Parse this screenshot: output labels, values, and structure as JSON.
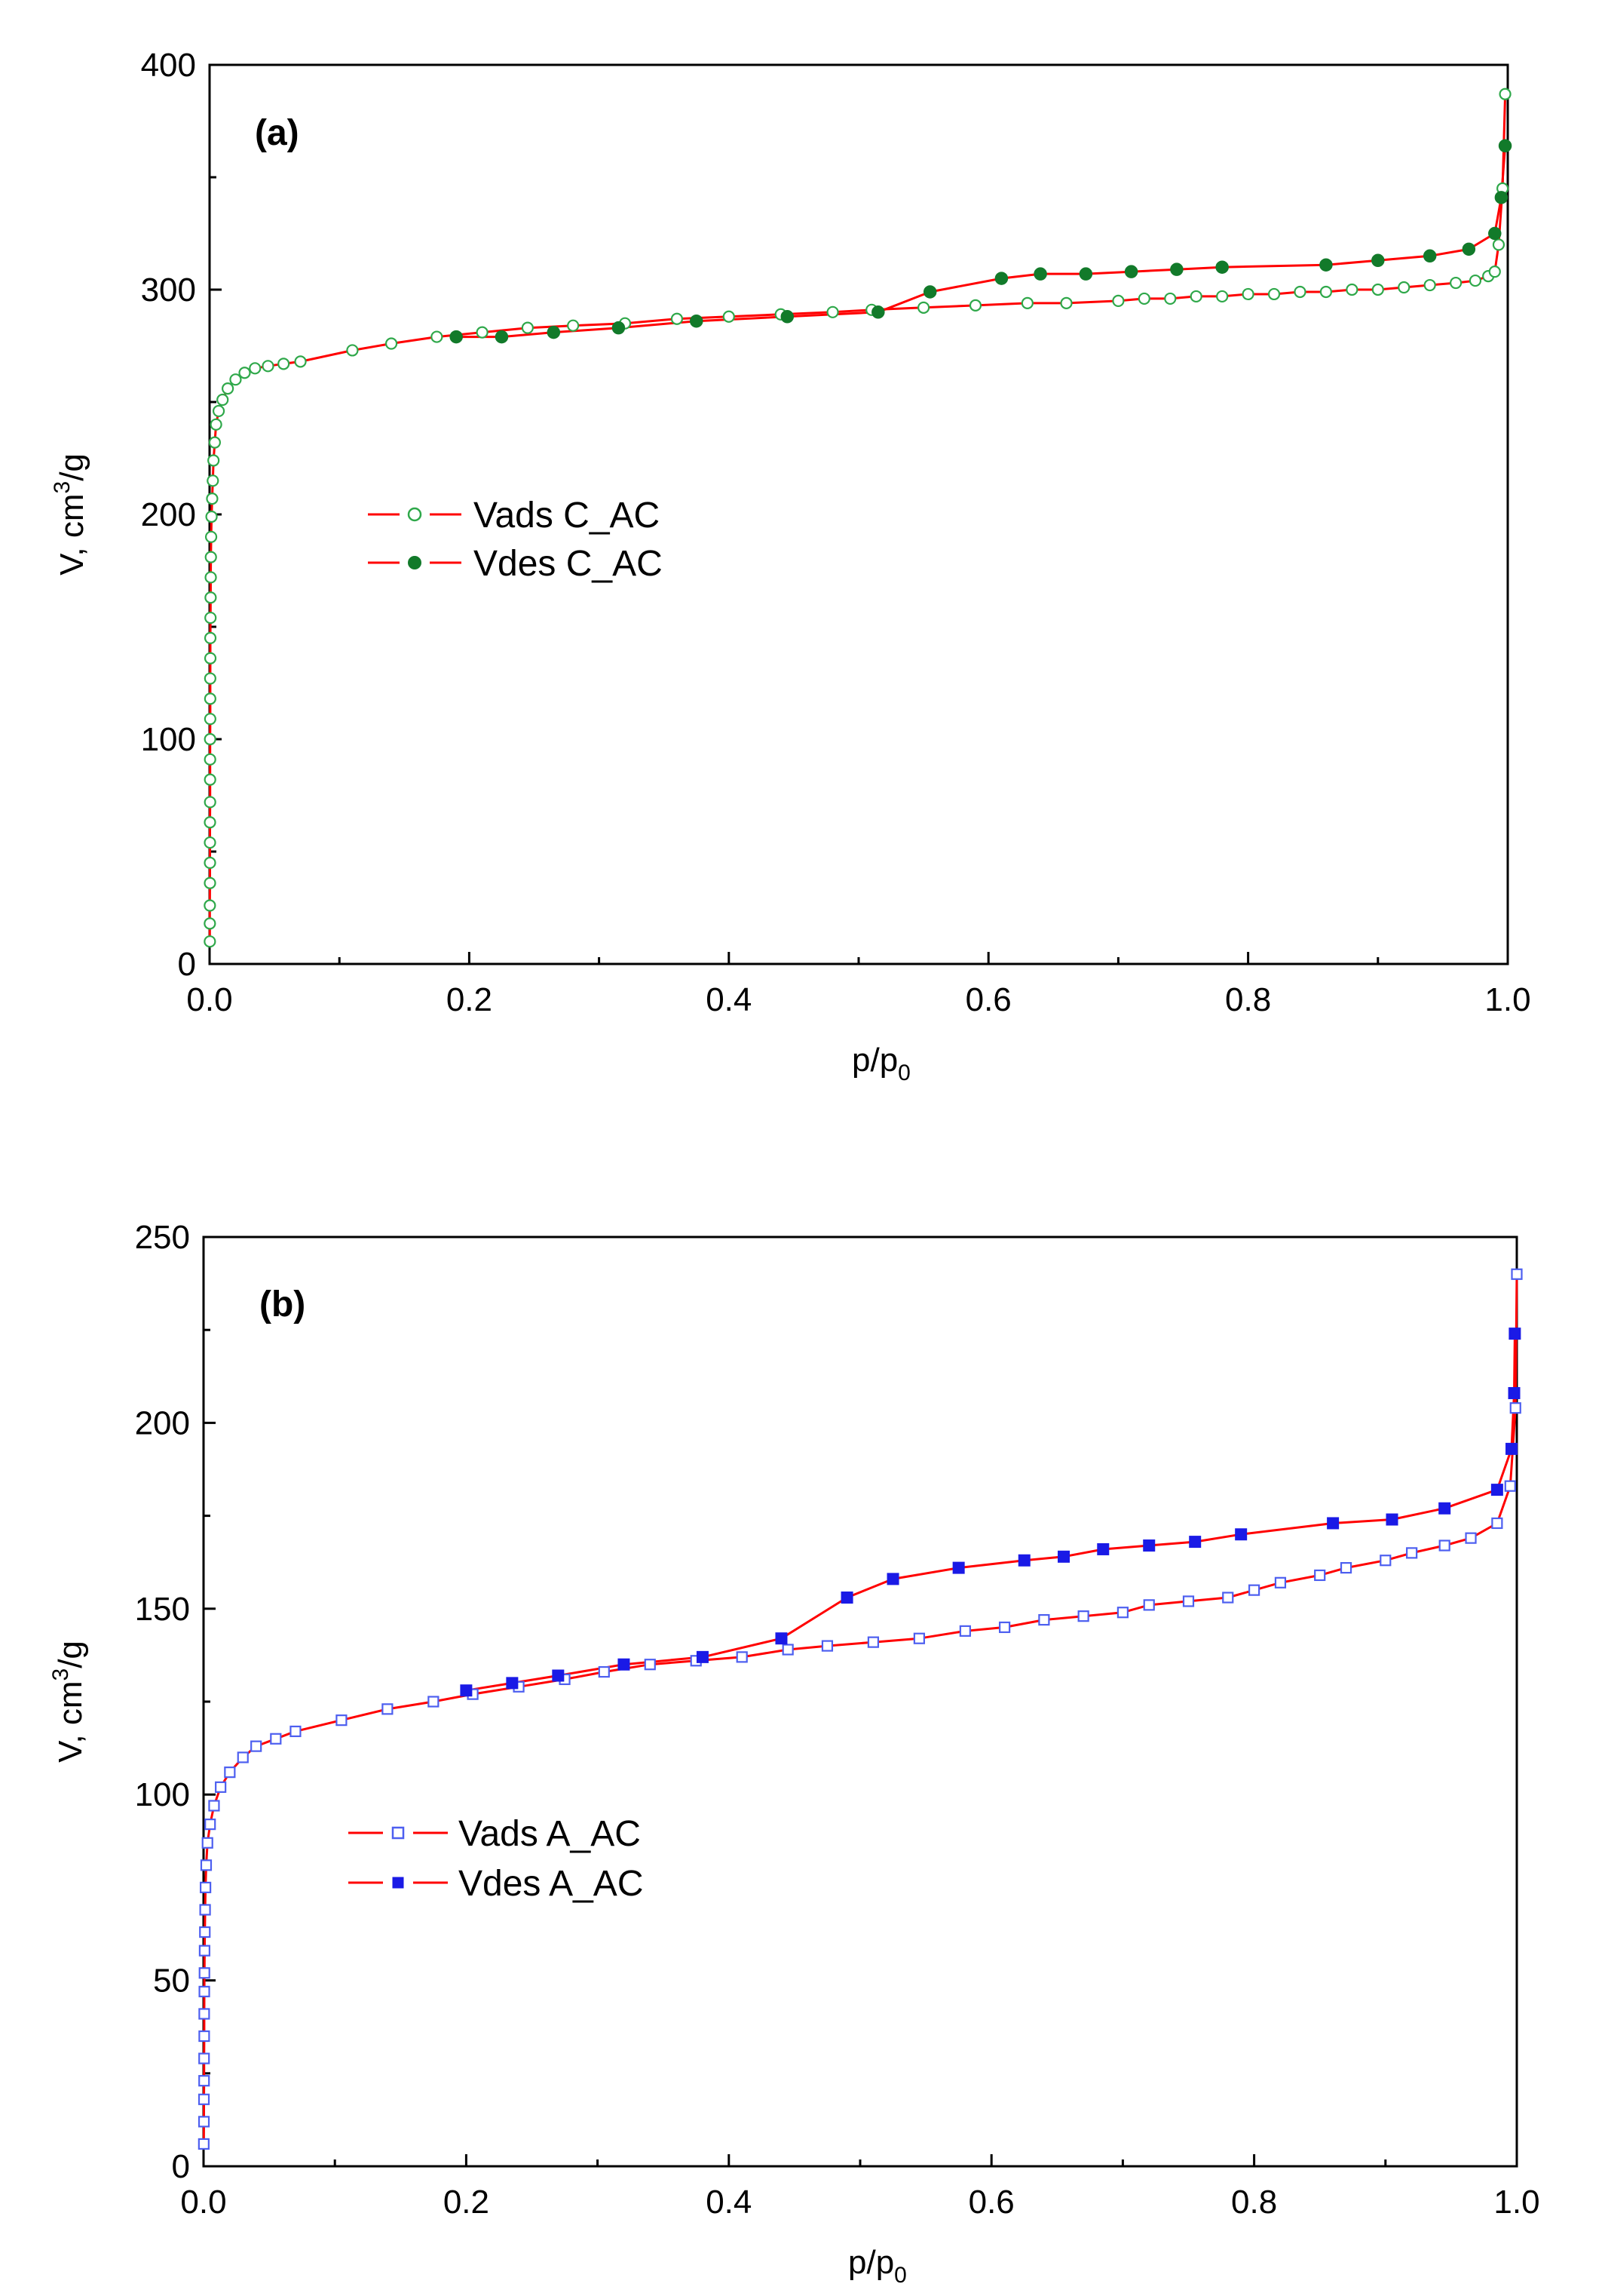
{
  "chart_data": [
    {
      "type": "line",
      "panel_label": "(a)",
      "xlabel_main": "p/p",
      "xlabel_sub": "0",
      "ylabel_main": "V, cm",
      "ylabel_sup": "3",
      "ylabel_tail": "/g",
      "xlim": [
        0,
        1.0
      ],
      "ylim": [
        0,
        400
      ],
      "xticks": [
        0.0,
        0.2,
        0.4,
        0.6,
        0.8,
        1.0
      ],
      "xtick_labels": [
        "0.0",
        "0.2",
        "0.4",
        "0.6",
        "0.8",
        "1.0"
      ],
      "yticks": [
        0,
        100,
        200,
        300,
        400
      ],
      "ytick_labels": [
        "0",
        "100",
        "200",
        "300",
        "400"
      ],
      "legend_position": "center-left",
      "line_color": "#ff0000",
      "series": [
        {
          "name": "Vads C_AC",
          "marker": "open-circle",
          "marker_color": "#2fa84a",
          "x": [
            0.0002,
            0.0002,
            0.0002,
            0.0003,
            0.0003,
            0.0003,
            0.0003,
            0.0004,
            0.0004,
            0.0004,
            0.0004,
            0.0005,
            0.0005,
            0.0005,
            0.0006,
            0.0006,
            0.0007,
            0.0008,
            0.0009,
            0.001,
            0.0012,
            0.0015,
            0.002,
            0.0025,
            0.003,
            0.004,
            0.005,
            0.007,
            0.01,
            0.014,
            0.02,
            0.027,
            0.035,
            0.045,
            0.057,
            0.07,
            0.11,
            0.14,
            0.175,
            0.21,
            0.245,
            0.28,
            0.32,
            0.36,
            0.4,
            0.44,
            0.48,
            0.51,
            0.55,
            0.59,
            0.63,
            0.66,
            0.7,
            0.72,
            0.74,
            0.76,
            0.78,
            0.8,
            0.82,
            0.84,
            0.86,
            0.88,
            0.9,
            0.92,
            0.94,
            0.96,
            0.975,
            0.985,
            0.99,
            0.993,
            0.996,
            0.998
          ],
          "y": [
            10,
            18,
            26,
            36,
            45,
            54,
            63,
            72,
            82,
            91,
            100,
            109,
            118,
            127,
            136,
            145,
            154,
            163,
            172,
            181,
            190,
            199,
            207,
            215,
            224,
            232,
            240,
            246,
            251,
            256,
            260,
            263,
            265,
            266,
            267,
            268,
            273,
            276,
            279,
            281,
            283,
            284,
            285,
            287,
            288,
            289,
            290,
            291,
            292,
            293,
            294,
            294,
            295,
            296,
            296,
            297,
            297,
            298,
            298,
            299,
            299,
            300,
            300,
            301,
            302,
            303,
            304,
            306,
            308,
            320,
            345,
            387
          ],
          "y_note": "adsorption branch of the C_AC isotherm"
        },
        {
          "name": "Vdes C_AC",
          "marker": "filled-circle",
          "marker_color": "#127a2a",
          "x": [
            0.998,
            0.995,
            0.99,
            0.97,
            0.94,
            0.9,
            0.86,
            0.78,
            0.745,
            0.71,
            0.675,
            0.64,
            0.61,
            0.555,
            0.515,
            0.445,
            0.375,
            0.315,
            0.265,
            0.225,
            0.19
          ],
          "y": [
            364,
            341,
            325,
            318,
            315,
            313,
            311,
            310,
            309,
            308,
            307,
            307,
            305,
            299,
            290,
            288,
            286,
            283,
            281,
            279,
            279
          ]
        }
      ]
    },
    {
      "type": "line",
      "panel_label": "(b)",
      "xlabel_main": "p/p",
      "xlabel_sub": "0",
      "ylabel_main": "V, cm",
      "ylabel_sup": "3",
      "ylabel_tail": "/g",
      "xlim": [
        0,
        1.0
      ],
      "ylim": [
        0,
        250
      ],
      "xticks": [
        0.0,
        0.2,
        0.4,
        0.6,
        0.8,
        1.0
      ],
      "xtick_labels": [
        "0.0",
        "0.2",
        "0.4",
        "0.6",
        "0.8",
        "1.0"
      ],
      "yticks": [
        0,
        50,
        100,
        150,
        200,
        250
      ],
      "ytick_labels": [
        "0",
        "50",
        "100",
        "150",
        "200",
        "250"
      ],
      "legend_position": "center-left",
      "line_color": "#ff0000",
      "series": [
        {
          "name": "Vads A_AC",
          "marker": "open-square",
          "marker_color": "#4d5ff0",
          "x": [
            0.0002,
            0.0003,
            0.0003,
            0.0004,
            0.0004,
            0.0005,
            0.0005,
            0.0006,
            0.0007,
            0.0008,
            0.001,
            0.0012,
            0.0015,
            0.002,
            0.003,
            0.005,
            0.008,
            0.013,
            0.02,
            0.03,
            0.04,
            0.055,
            0.07,
            0.105,
            0.14,
            0.175,
            0.205,
            0.24,
            0.275,
            0.305,
            0.34,
            0.375,
            0.41,
            0.445,
            0.475,
            0.51,
            0.545,
            0.58,
            0.61,
            0.64,
            0.67,
            0.7,
            0.72,
            0.75,
            0.78,
            0.8,
            0.82,
            0.85,
            0.87,
            0.9,
            0.92,
            0.945,
            0.965,
            0.985,
            0.995,
            0.999,
            1.0
          ],
          "y": [
            6,
            12,
            18,
            23,
            29,
            35,
            41,
            47,
            52,
            58,
            63,
            69,
            75,
            81,
            87,
            92,
            97,
            102,
            106,
            110,
            113,
            115,
            117,
            120,
            123,
            125,
            127,
            129,
            131,
            133,
            135,
            136,
            137,
            139,
            140,
            141,
            142,
            144,
            145,
            147,
            148,
            149,
            151,
            152,
            153,
            155,
            157,
            159,
            161,
            163,
            165,
            167,
            169,
            173,
            183,
            204,
            240
          ],
          "y_note": "adsorption branch of the A_AC isotherm"
        },
        {
          "name": "Vdes A_AC",
          "marker": "filled-square",
          "marker_color": "#1a1ae6",
          "x": [
            0.9985,
            0.998,
            0.996,
            0.985,
            0.945,
            0.905,
            0.86,
            0.79,
            0.755,
            0.72,
            0.685,
            0.655,
            0.625,
            0.575,
            0.525,
            0.49,
            0.44,
            0.38,
            0.32,
            0.27,
            0.235,
            0.2
          ],
          "y": [
            224,
            208,
            193,
            182,
            177,
            174,
            173,
            170,
            168,
            167,
            166,
            164,
            163,
            161,
            158,
            153,
            142,
            137,
            135,
            132,
            130,
            128
          ]
        }
      ]
    }
  ]
}
